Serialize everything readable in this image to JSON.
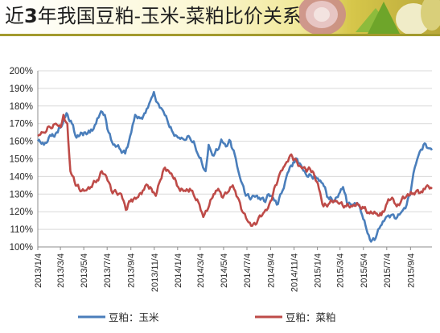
{
  "banner": {
    "title_prefix": "近",
    "title_number": "3",
    "title_suffix": "年我国豆粕-玉米-菜粕比价关系"
  },
  "colors": {
    "series1": "#4a7ebb",
    "series2": "#be4b48",
    "grid": "#d9d9d9",
    "axis": "#8c8c8c"
  },
  "chart_data": {
    "type": "line",
    "title": "",
    "xlabel": "",
    "ylabel": "",
    "ylim": [
      100,
      200
    ],
    "yticks": [
      100,
      110,
      120,
      130,
      140,
      150,
      160,
      170,
      180,
      190,
      200
    ],
    "ytick_labels": [
      "100%",
      "110%",
      "120%",
      "130%",
      "140%",
      "150%",
      "160%",
      "170%",
      "180%",
      "190%",
      "200%"
    ],
    "xlim": [
      "2013-01-04",
      "2015-10-30"
    ],
    "xtick_labels": [
      "2013/1/4",
      "2013/3/4",
      "2013/5/4",
      "2013/7/4",
      "2013/9/4",
      "2013/11/4",
      "2014/1/4",
      "2014/3/4",
      "2014/5/4",
      "2014/7/4",
      "2014/9/4",
      "2014/11/4",
      "2015/1/4",
      "2015/3/4",
      "2015/5/4",
      "2015/7/4",
      "2015/9/4"
    ],
    "grid": true,
    "legend_position": "bottom",
    "series": [
      {
        "name": "豆粕：玉米",
        "color": "#4a7ebb",
        "points": [
          [
            "2013-01-04",
            160
          ],
          [
            "2013-01-20",
            158
          ],
          [
            "2013-02-08",
            163
          ],
          [
            "2013-02-25",
            165
          ],
          [
            "2013-03-10",
            170
          ],
          [
            "2013-03-20",
            176
          ],
          [
            "2013-04-03",
            170
          ],
          [
            "2013-04-15",
            162
          ],
          [
            "2013-05-05",
            165
          ],
          [
            "2013-05-20",
            165
          ],
          [
            "2013-06-05",
            170
          ],
          [
            "2013-06-18",
            177
          ],
          [
            "2013-06-28",
            175
          ],
          [
            "2013-07-08",
            165
          ],
          [
            "2013-07-20",
            158
          ],
          [
            "2013-08-05",
            156
          ],
          [
            "2013-08-20",
            153
          ],
          [
            "2013-09-05",
            165
          ],
          [
            "2013-09-15",
            175
          ],
          [
            "2013-09-28",
            173
          ],
          [
            "2013-10-12",
            176
          ],
          [
            "2013-10-25",
            183
          ],
          [
            "2013-11-03",
            188
          ],
          [
            "2013-11-12",
            182
          ],
          [
            "2013-11-25",
            178
          ],
          [
            "2013-12-08",
            172
          ],
          [
            "2013-12-20",
            166
          ],
          [
            "2014-01-05",
            162
          ],
          [
            "2014-01-20",
            161
          ],
          [
            "2014-02-05",
            162
          ],
          [
            "2014-02-15",
            160
          ],
          [
            "2014-02-25",
            153
          ],
          [
            "2014-03-08",
            148
          ],
          [
            "2014-03-18",
            143
          ],
          [
            "2014-03-26",
            158
          ],
          [
            "2014-04-05",
            152
          ],
          [
            "2014-04-18",
            155
          ],
          [
            "2014-04-28",
            161
          ],
          [
            "2014-05-10",
            157
          ],
          [
            "2014-05-22",
            160
          ],
          [
            "2014-06-05",
            150
          ],
          [
            "2014-06-15",
            140
          ],
          [
            "2014-06-28",
            131
          ],
          [
            "2014-07-10",
            128
          ],
          [
            "2014-07-22",
            129
          ],
          [
            "2014-08-05",
            128
          ],
          [
            "2014-08-18",
            126
          ],
          [
            "2014-08-30",
            130
          ],
          [
            "2014-09-10",
            128
          ],
          [
            "2014-09-20",
            124
          ],
          [
            "2014-10-05",
            132
          ],
          [
            "2014-10-18",
            142
          ],
          [
            "2014-11-02",
            148
          ],
          [
            "2014-11-12",
            150
          ],
          [
            "2014-11-25",
            145
          ],
          [
            "2014-12-08",
            140
          ],
          [
            "2014-12-20",
            140
          ],
          [
            "2015-01-05",
            139
          ],
          [
            "2015-01-18",
            136
          ],
          [
            "2015-02-01",
            128
          ],
          [
            "2015-02-15",
            126
          ],
          [
            "2015-03-01",
            130
          ],
          [
            "2015-03-12",
            134
          ],
          [
            "2015-03-22",
            125
          ],
          [
            "2015-04-05",
            124
          ],
          [
            "2015-04-18",
            125
          ],
          [
            "2015-05-01",
            118
          ],
          [
            "2015-05-12",
            110
          ],
          [
            "2015-05-24",
            103
          ],
          [
            "2015-06-05",
            105
          ],
          [
            "2015-06-18",
            112
          ],
          [
            "2015-07-02",
            117
          ],
          [
            "2015-07-15",
            118
          ],
          [
            "2015-07-28",
            116
          ],
          [
            "2015-08-12",
            120
          ],
          [
            "2015-08-25",
            124
          ],
          [
            "2015-09-05",
            132
          ],
          [
            "2015-09-15",
            145
          ],
          [
            "2015-09-25",
            152
          ],
          [
            "2015-10-08",
            158
          ],
          [
            "2015-10-22",
            156
          ],
          [
            "2015-10-30",
            155
          ]
        ]
      },
      {
        "name": "豆粕：菜粕",
        "color": "#be4b48",
        "points": [
          [
            "2013-01-04",
            163
          ],
          [
            "2013-01-20",
            165
          ],
          [
            "2013-02-05",
            168
          ],
          [
            "2013-02-20",
            170
          ],
          [
            "2013-03-05",
            168
          ],
          [
            "2013-03-12",
            175
          ],
          [
            "2013-03-22",
            170
          ],
          [
            "2013-03-30",
            143
          ],
          [
            "2013-04-10",
            137
          ],
          [
            "2013-04-22",
            133
          ],
          [
            "2013-05-08",
            132
          ],
          [
            "2013-05-22",
            134
          ],
          [
            "2013-06-08",
            138
          ],
          [
            "2013-06-20",
            143
          ],
          [
            "2013-07-02",
            140
          ],
          [
            "2013-07-15",
            132
          ],
          [
            "2013-07-28",
            131
          ],
          [
            "2013-08-10",
            130
          ],
          [
            "2013-08-22",
            121
          ],
          [
            "2013-09-05",
            127
          ],
          [
            "2013-09-20",
            128
          ],
          [
            "2013-10-05",
            132
          ],
          [
            "2013-10-18",
            135
          ],
          [
            "2013-10-28",
            133
          ],
          [
            "2013-11-08",
            129
          ],
          [
            "2013-11-20",
            138
          ],
          [
            "2013-12-02",
            145
          ],
          [
            "2013-12-12",
            143
          ],
          [
            "2013-12-22",
            140
          ],
          [
            "2014-01-08",
            133
          ],
          [
            "2014-01-22",
            132
          ],
          [
            "2014-02-05",
            133
          ],
          [
            "2014-02-18",
            128
          ],
          [
            "2014-03-02",
            124
          ],
          [
            "2014-03-12",
            117
          ],
          [
            "2014-03-25",
            122
          ],
          [
            "2014-04-08",
            130
          ],
          [
            "2014-04-20",
            133
          ],
          [
            "2014-05-02",
            128
          ],
          [
            "2014-05-15",
            131
          ],
          [
            "2014-05-28",
            135
          ],
          [
            "2014-06-10",
            128
          ],
          [
            "2014-06-22",
            120
          ],
          [
            "2014-07-05",
            115
          ],
          [
            "2014-07-18",
            112
          ],
          [
            "2014-08-01",
            115
          ],
          [
            "2014-08-15",
            119
          ],
          [
            "2014-08-28",
            122
          ],
          [
            "2014-09-10",
            130
          ],
          [
            "2014-09-25",
            140
          ],
          [
            "2014-10-10",
            146
          ],
          [
            "2014-10-25",
            152
          ],
          [
            "2014-11-05",
            150
          ],
          [
            "2014-11-15",
            146
          ],
          [
            "2014-11-28",
            145
          ],
          [
            "2014-12-10",
            144
          ],
          [
            "2014-12-22",
            143
          ],
          [
            "2015-01-08",
            133
          ],
          [
            "2015-01-20",
            123
          ],
          [
            "2015-02-05",
            125
          ],
          [
            "2015-02-20",
            126
          ],
          [
            "2015-03-05",
            125
          ],
          [
            "2015-03-20",
            123
          ],
          [
            "2015-04-05",
            123
          ],
          [
            "2015-04-20",
            124
          ],
          [
            "2015-05-05",
            122
          ],
          [
            "2015-05-20",
            119
          ],
          [
            "2015-06-05",
            119
          ],
          [
            "2015-06-20",
            118
          ],
          [
            "2015-07-05",
            125
          ],
          [
            "2015-07-18",
            128
          ],
          [
            "2015-07-30",
            123
          ],
          [
            "2015-08-12",
            127
          ],
          [
            "2015-08-25",
            129
          ],
          [
            "2015-09-08",
            130
          ],
          [
            "2015-09-20",
            132
          ],
          [
            "2015-10-05",
            131
          ],
          [
            "2015-10-18",
            135
          ],
          [
            "2015-10-30",
            133
          ]
        ]
      }
    ]
  }
}
